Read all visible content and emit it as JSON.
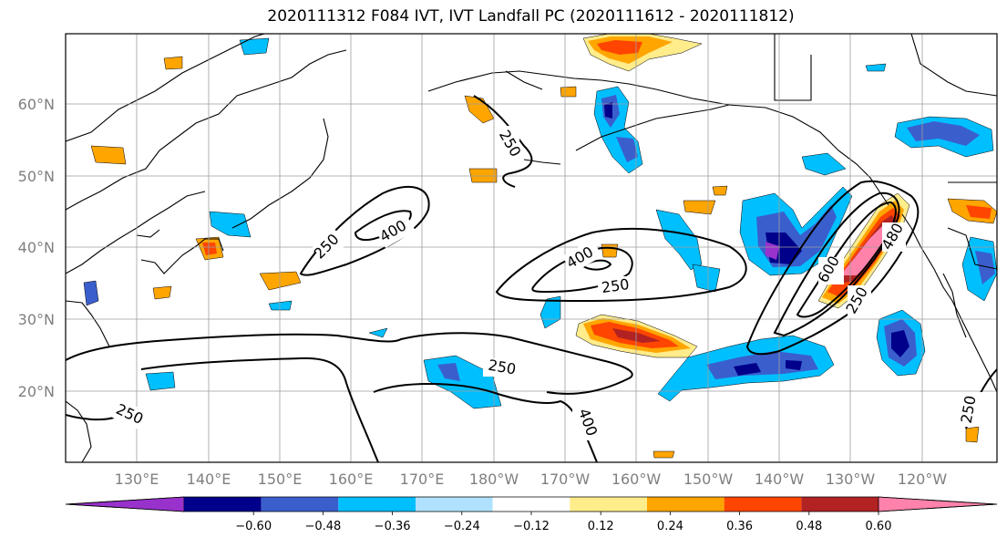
{
  "title": "2020111312 F084 IVT, IVT Landfall PC (2020111612 - 2020111812)",
  "lat_labels": [
    "60°N",
    "50°N",
    "40°N",
    "30°N",
    "20°N"
  ],
  "lon_labels": [
    "130°E",
    "140°E",
    "150°E",
    "160°E",
    "170°E",
    "180°W",
    "170°W",
    "160°W",
    "150°W",
    "140°W",
    "130°W",
    "120°W"
  ],
  "contour_labels": [
    "250",
    "400",
    "250",
    "400",
    "250",
    "250",
    "400",
    "600",
    "480",
    "250",
    "250"
  ],
  "colorbar": {
    "ticks": [
      "−0.60",
      "−0.48",
      "−0.36",
      "−0.24",
      "−0.12",
      "0.12",
      "0.24",
      "0.36",
      "0.48",
      "0.60"
    ],
    "colors": [
      "#9932cc",
      "#00008b",
      "#3a5fcd",
      "#00bfff",
      "#b0e2ff",
      "#ffffff",
      "#ffec8b",
      "#ffa500",
      "#ff4500",
      "#b22222",
      "#ff82ab"
    ]
  },
  "colors": {
    "strong_negative": "#00008b",
    "mid_negative": "#3a5fcd",
    "light_negative": "#00bfff",
    "pale_negative": "#b0e2ff",
    "pale_positive": "#ffec8b",
    "mid_positive": "#ffa500",
    "strong_positive": "#ff4500",
    "deep_positive": "#b22222",
    "max_positive": "#ff82ab"
  }
}
